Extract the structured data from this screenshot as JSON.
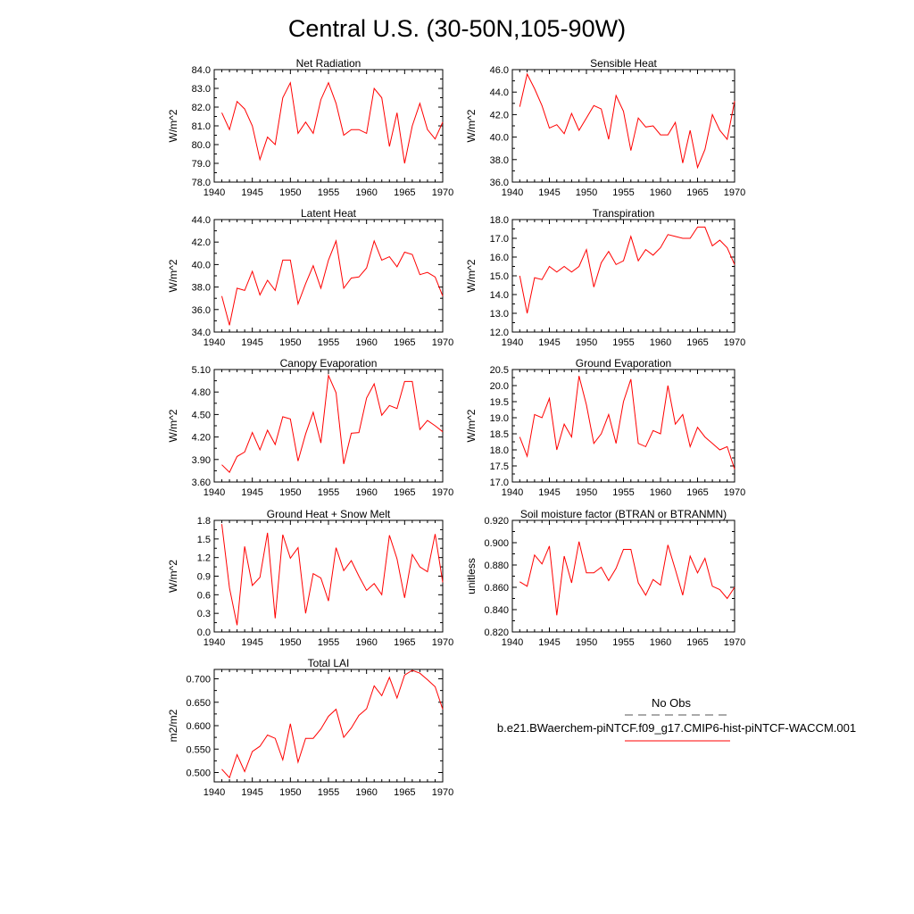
{
  "page_title": "Central U.S. (30-50N,105-90W)",
  "colors": {
    "series": "#ff0000",
    "obs": "#555555",
    "axis": "#000000"
  },
  "legend": {
    "obs_label": "No Obs",
    "model_label": "b.e21.BWaerchem-piNTCF.f09_g17.CMIP6-hist-piNTCF-WACCM.001"
  },
  "chart_data": [
    {
      "type": "line",
      "title": "Net Radiation",
      "ylabel": "W/m^2",
      "xlim": [
        1940,
        1970
      ],
      "ylim": [
        78.0,
        84.0
      ],
      "xticks": [
        1940,
        1945,
        1950,
        1955,
        1960,
        1965,
        1970
      ],
      "yticks": [
        "78.0",
        "79.0",
        "80.0",
        "81.0",
        "82.0",
        "83.0",
        "84.0"
      ],
      "x": [
        1941,
        1942,
        1943,
        1944,
        1945,
        1946,
        1947,
        1948,
        1949,
        1950,
        1951,
        1952,
        1953,
        1954,
        1955,
        1956,
        1957,
        1958,
        1959,
        1960,
        1961,
        1962,
        1963,
        1964,
        1965,
        1966,
        1967,
        1968,
        1969,
        1970
      ],
      "series": [
        {
          "values": [
            81.7,
            80.8,
            82.3,
            81.9,
            81.0,
            79.2,
            80.4,
            80.0,
            82.5,
            83.3,
            80.6,
            81.2,
            80.6,
            82.4,
            83.3,
            82.2,
            80.5,
            80.8,
            80.8,
            80.6,
            83.0,
            82.5,
            79.9,
            81.7,
            79.0,
            81.0,
            82.2,
            80.8,
            80.3,
            81.2
          ]
        }
      ]
    },
    {
      "type": "line",
      "title": "Sensible Heat",
      "ylabel": "W/m^2",
      "xlim": [
        1940,
        1970
      ],
      "ylim": [
        36.0,
        46.0
      ],
      "xticks": [
        1940,
        1945,
        1950,
        1955,
        1960,
        1965,
        1970
      ],
      "yticks": [
        "36.0",
        "38.0",
        "40.0",
        "42.0",
        "44.0",
        "46.0"
      ],
      "x": [
        1941,
        1942,
        1943,
        1944,
        1945,
        1946,
        1947,
        1948,
        1949,
        1950,
        1951,
        1952,
        1953,
        1954,
        1955,
        1956,
        1957,
        1958,
        1959,
        1960,
        1961,
        1962,
        1963,
        1964,
        1965,
        1966,
        1967,
        1968,
        1969,
        1970
      ],
      "series": [
        {
          "values": [
            42.7,
            45.6,
            44.3,
            42.8,
            40.8,
            41.1,
            40.3,
            42.1,
            40.6,
            41.7,
            42.8,
            42.5,
            39.8,
            43.7,
            42.3,
            38.8,
            41.7,
            40.9,
            41.0,
            40.2,
            40.2,
            41.3,
            37.7,
            40.6,
            37.3,
            38.9,
            42.0,
            40.6,
            39.8,
            43.2
          ]
        }
      ]
    },
    {
      "type": "line",
      "title": "Latent Heat",
      "ylabel": "W/m^2",
      "xlim": [
        1940,
        1970
      ],
      "ylim": [
        34.0,
        44.0
      ],
      "xticks": [
        1940,
        1945,
        1950,
        1955,
        1960,
        1965,
        1970
      ],
      "yticks": [
        "34.0",
        "36.0",
        "38.0",
        "40.0",
        "42.0",
        "44.0"
      ],
      "x": [
        1941,
        1942,
        1943,
        1944,
        1945,
        1946,
        1947,
        1948,
        1949,
        1950,
        1951,
        1952,
        1953,
        1954,
        1955,
        1956,
        1957,
        1958,
        1959,
        1960,
        1961,
        1962,
        1963,
        1964,
        1965,
        1966,
        1967,
        1968,
        1969,
        1970
      ],
      "series": [
        {
          "values": [
            37.2,
            34.6,
            37.9,
            37.7,
            39.4,
            37.3,
            38.6,
            37.7,
            40.4,
            40.4,
            36.5,
            38.3,
            39.9,
            37.9,
            40.4,
            42.1,
            37.9,
            38.8,
            38.9,
            39.7,
            42.1,
            40.4,
            40.7,
            39.8,
            41.1,
            40.9,
            39.1,
            39.3,
            38.9,
            37.2
          ]
        }
      ]
    },
    {
      "type": "line",
      "title": "Transpiration",
      "ylabel": "W/m^2",
      "xlim": [
        1940,
        1970
      ],
      "ylim": [
        12.0,
        18.0
      ],
      "xticks": [
        1940,
        1945,
        1950,
        1955,
        1960,
        1965,
        1970
      ],
      "yticks": [
        "12.0",
        "13.0",
        "14.0",
        "15.0",
        "16.0",
        "17.0",
        "18.0"
      ],
      "x": [
        1941,
        1942,
        1943,
        1944,
        1945,
        1946,
        1947,
        1948,
        1949,
        1950,
        1951,
        1952,
        1953,
        1954,
        1955,
        1956,
        1957,
        1958,
        1959,
        1960,
        1961,
        1962,
        1963,
        1964,
        1965,
        1966,
        1967,
        1968,
        1969,
        1970
      ],
      "series": [
        {
          "values": [
            15.0,
            13.0,
            14.9,
            14.8,
            15.5,
            15.2,
            15.5,
            15.2,
            15.5,
            16.4,
            14.4,
            15.7,
            16.3,
            15.6,
            15.8,
            17.1,
            15.8,
            16.4,
            16.1,
            16.5,
            17.2,
            17.1,
            17.0,
            17.0,
            17.6,
            17.6,
            16.6,
            16.9,
            16.5,
            15.6
          ]
        }
      ]
    },
    {
      "type": "line",
      "title": "Canopy Evaporation",
      "ylabel": "W/m^2",
      "xlim": [
        1940,
        1970
      ],
      "ylim": [
        3.6,
        5.1
      ],
      "xticks": [
        1940,
        1945,
        1950,
        1955,
        1960,
        1965,
        1970
      ],
      "yticks": [
        "3.60",
        "3.90",
        "4.20",
        "4.50",
        "4.80",
        "5.10"
      ],
      "x": [
        1941,
        1942,
        1943,
        1944,
        1945,
        1946,
        1947,
        1948,
        1949,
        1950,
        1951,
        1952,
        1953,
        1954,
        1955,
        1956,
        1957,
        1958,
        1959,
        1960,
        1961,
        1962,
        1963,
        1964,
        1965,
        1966,
        1967,
        1968,
        1969,
        1970
      ],
      "series": [
        {
          "values": [
            3.83,
            3.73,
            3.94,
            4.0,
            4.26,
            4.03,
            4.29,
            4.1,
            4.47,
            4.44,
            3.88,
            4.24,
            4.53,
            4.12,
            5.02,
            4.79,
            3.84,
            4.25,
            4.26,
            4.72,
            4.91,
            4.49,
            4.62,
            4.58,
            4.94,
            4.94,
            4.3,
            4.42,
            4.35,
            4.27
          ]
        }
      ]
    },
    {
      "type": "line",
      "title": "Ground Evaporation",
      "ylabel": "W/m^2",
      "xlim": [
        1940,
        1970
      ],
      "ylim": [
        17.0,
        20.5
      ],
      "xticks": [
        1940,
        1945,
        1950,
        1955,
        1960,
        1965,
        1970
      ],
      "yticks": [
        "17.0",
        "17.5",
        "18.0",
        "18.5",
        "19.0",
        "19.5",
        "20.0",
        "20.5"
      ],
      "x": [
        1941,
        1942,
        1943,
        1944,
        1945,
        1946,
        1947,
        1948,
        1949,
        1950,
        1951,
        1952,
        1953,
        1954,
        1955,
        1956,
        1957,
        1958,
        1959,
        1960,
        1961,
        1962,
        1963,
        1964,
        1965,
        1966,
        1967,
        1968,
        1969,
        1970
      ],
      "series": [
        {
          "values": [
            18.4,
            17.8,
            19.1,
            19.0,
            19.6,
            18.0,
            18.8,
            18.4,
            20.3,
            19.4,
            18.2,
            18.5,
            19.1,
            18.2,
            19.5,
            20.2,
            18.2,
            18.1,
            18.6,
            18.5,
            20.0,
            18.8,
            19.1,
            18.1,
            18.7,
            18.4,
            18.2,
            18.0,
            18.1,
            17.4
          ]
        }
      ]
    },
    {
      "type": "line",
      "title": "Ground Heat + Snow Melt",
      "ylabel": "W/m^2",
      "xlim": [
        1940,
        1970
      ],
      "ylim": [
        0.0,
        1.8
      ],
      "xticks": [
        1940,
        1945,
        1950,
        1955,
        1960,
        1965,
        1970
      ],
      "yticks": [
        "0.0",
        "0.3",
        "0.6",
        "0.9",
        "1.2",
        "1.5",
        "1.8"
      ],
      "x": [
        1941,
        1942,
        1943,
        1944,
        1945,
        1946,
        1947,
        1948,
        1949,
        1950,
        1951,
        1952,
        1953,
        1954,
        1955,
        1956,
        1957,
        1958,
        1959,
        1960,
        1961,
        1962,
        1963,
        1964,
        1965,
        1966,
        1967,
        1968,
        1969,
        1970
      ],
      "series": [
        {
          "values": [
            1.74,
            0.71,
            0.11,
            1.38,
            0.75,
            0.88,
            1.6,
            0.22,
            1.57,
            1.19,
            1.36,
            0.3,
            0.94,
            0.87,
            0.5,
            1.36,
            0.99,
            1.15,
            0.9,
            0.67,
            0.78,
            0.6,
            1.56,
            1.18,
            0.55,
            1.25,
            1.05,
            0.97,
            1.58,
            0.8
          ]
        }
      ]
    },
    {
      "type": "line",
      "title": "Soil moisture factor (BTRAN or BTRANMN)",
      "ylabel": "unitless",
      "xlim": [
        1940,
        1970
      ],
      "ylim": [
        0.82,
        0.92
      ],
      "xticks": [
        1940,
        1945,
        1950,
        1955,
        1960,
        1965,
        1970
      ],
      "yticks": [
        "0.820",
        "0.840",
        "0.860",
        "0.880",
        "0.900",
        "0.920"
      ],
      "x": [
        1941,
        1942,
        1943,
        1944,
        1945,
        1946,
        1947,
        1948,
        1949,
        1950,
        1951,
        1952,
        1953,
        1954,
        1955,
        1956,
        1957,
        1958,
        1959,
        1960,
        1961,
        1962,
        1963,
        1964,
        1965,
        1966,
        1967,
        1968,
        1969,
        1970
      ],
      "series": [
        {
          "values": [
            0.865,
            0.861,
            0.889,
            0.881,
            0.897,
            0.835,
            0.888,
            0.864,
            0.901,
            0.873,
            0.873,
            0.878,
            0.866,
            0.877,
            0.894,
            0.894,
            0.864,
            0.853,
            0.867,
            0.862,
            0.898,
            0.876,
            0.853,
            0.888,
            0.873,
            0.886,
            0.861,
            0.858,
            0.85,
            0.86
          ]
        }
      ]
    },
    {
      "type": "line",
      "title": "Total LAI",
      "ylabel": "m2/m2",
      "xlim": [
        1940,
        1970
      ],
      "ylim": [
        0.48,
        0.72
      ],
      "xticks": [
        1940,
        1945,
        1950,
        1955,
        1960,
        1965,
        1970
      ],
      "yticks": [
        "0.500",
        "0.550",
        "0.600",
        "0.650",
        "0.700"
      ],
      "ytick_values": [
        0.5,
        0.55,
        0.6,
        0.65,
        0.7
      ],
      "x": [
        1941,
        1942,
        1943,
        1944,
        1945,
        1946,
        1947,
        1948,
        1949,
        1950,
        1951,
        1952,
        1953,
        1954,
        1955,
        1956,
        1957,
        1958,
        1959,
        1960,
        1961,
        1962,
        1963,
        1964,
        1965,
        1966,
        1967,
        1968,
        1969,
        1970
      ],
      "series": [
        {
          "values": [
            0.507,
            0.489,
            0.538,
            0.502,
            0.545,
            0.556,
            0.58,
            0.573,
            0.527,
            0.604,
            0.522,
            0.573,
            0.573,
            0.593,
            0.62,
            0.635,
            0.575,
            0.595,
            0.622,
            0.636,
            0.685,
            0.664,
            0.703,
            0.659,
            0.708,
            0.718,
            0.712,
            0.698,
            0.683,
            0.635
          ]
        }
      ]
    }
  ]
}
